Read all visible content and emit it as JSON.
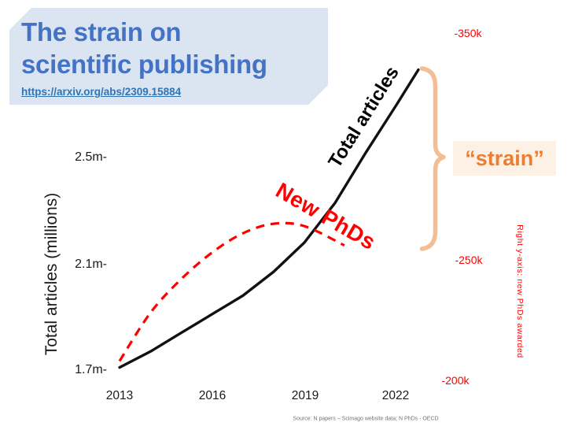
{
  "slide": {
    "title_lines": [
      "The strain on",
      "scientific publishing"
    ],
    "link": "https://arxiv.org/abs/2309.15884",
    "source_note": "Source: N papers – Scimago website data; N PhDs - OECD"
  },
  "annotations": {
    "strain_label": "“strain”",
    "left_axis_title": "Total articles (millions)",
    "right_axis_title": "Right y-axis: new PhDs awarded"
  },
  "colors": {
    "title_blue": "#4472c4",
    "title_bg": "#dbe5f2",
    "link_blue": "#2e75b6",
    "red": "#ff0000",
    "black_line": "#111111",
    "brace_peach": "#f4bd94",
    "strain_orange": "#ed7d31",
    "strain_bg": "#fdf1e5",
    "source_gray": "#737373",
    "axis_black": "#1a1a1a"
  },
  "chart_data": {
    "type": "line",
    "title": "",
    "xlabel": "",
    "ylabel_left": "Total articles (millions)",
    "ylabel_right": "New PhDs awarded (thousands)",
    "x_ticks": [
      "2013",
      "2016",
      "2019",
      "2022"
    ],
    "left_ticks": [
      "2.5m-",
      "2.1m-",
      "1.7m-"
    ],
    "right_ticks": [
      "-350k",
      "-250k",
      "-200k"
    ],
    "left_axis_range_millions": [
      1.7,
      2.5
    ],
    "right_axis_range_thousands": [
      200,
      350
    ],
    "grid": false,
    "legend": "labels drawn along lines",
    "series": [
      {
        "name": "Total articles",
        "axis": "left",
        "units": "millions of articles",
        "color": "#111111",
        "style": "solid",
        "x": [
          2013,
          2014,
          2015,
          2016,
          2017,
          2018,
          2019,
          2020,
          2021,
          2022,
          2022.7
        ],
        "values": [
          1.71,
          1.77,
          1.84,
          1.91,
          1.98,
          2.07,
          2.18,
          2.33,
          2.52,
          2.7,
          2.83
        ]
      },
      {
        "name": "New PhDs",
        "axis": "right",
        "units": "thousands of new PhDs",
        "color": "#ff0000",
        "style": "dashed",
        "x": [
          2013,
          2014,
          2015,
          2016,
          2017,
          2018,
          2019,
          2020.3
        ],
        "values": [
          208,
          228,
          242,
          253,
          261,
          265,
          264,
          256
        ]
      }
    ]
  }
}
